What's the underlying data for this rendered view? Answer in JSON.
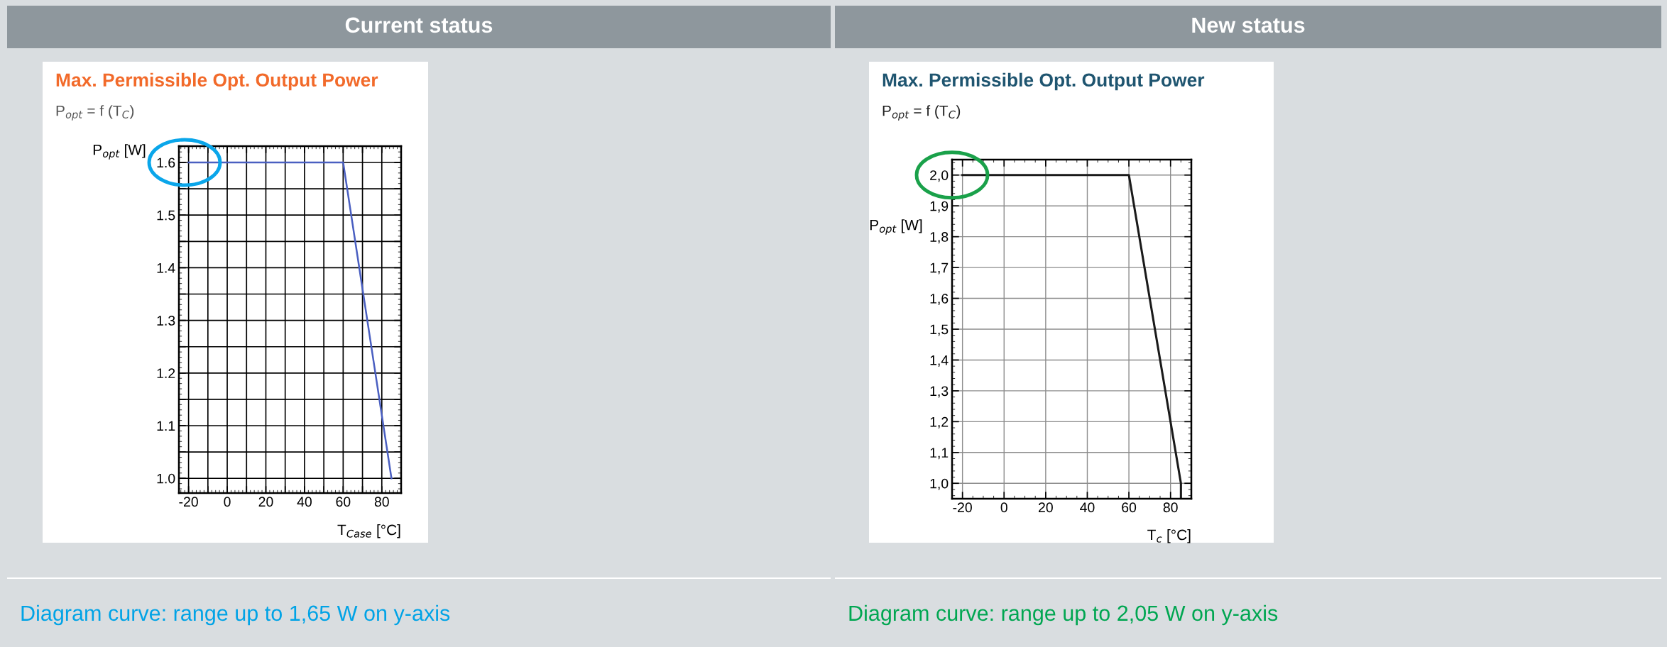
{
  "chart_data": [
    {
      "type": "line",
      "title": "Max. Permissible Opt. Output Power",
      "subtitle": "P$_{opt}$ = f (T$_{C}$)",
      "xlabel": "T$_{Case}$ [°C]",
      "ylabel": "P$_{opt}$ [W]",
      "annotations": [
        "Current status",
        "Diagram curve: range up to 1,65 W on y-axis"
      ],
      "x": [
        -20,
        60,
        85
      ],
      "series": [
        {
          "color": "#4a5fc1",
          "values": [
            1.6,
            1.6,
            1.0
          ]
        }
      ],
      "xlim": [
        -25,
        90
      ],
      "ylim": [
        0.972,
        1.631
      ],
      "xticks": [
        -20,
        {
          "value": -10,
          "label": null
        },
        0,
        {
          "value": 10,
          "label": null
        },
        20,
        {
          "value": 30,
          "label": null
        },
        40,
        {
          "value": 50,
          "label": null
        },
        60,
        {
          "value": 70,
          "label": null
        },
        80
      ],
      "yticks": [
        {
          "value": 1.0,
          "label": "1.0"
        },
        {
          "value": 1.05,
          "label": null
        },
        1.1,
        {
          "value": 1.15,
          "label": null
        },
        1.2,
        {
          "value": 1.25,
          "label": null
        },
        1.3,
        {
          "value": 1.35,
          "label": null
        },
        1.4,
        {
          "value": 1.45,
          "label": null
        },
        1.5,
        {
          "value": 1.55,
          "label": null
        },
        1.6
      ],
      "grid": true,
      "marker": "none",
      "line_style": "solid"
    },
    {
      "type": "line",
      "title": "Max. Permissible Opt. Output Power",
      "subtitle": "P$_{opt}$ = f (T$_{C}$)",
      "xlabel": "T$_{c}$ [°C]",
      "ylabel": "P$_{opt}$ [W]",
      "annotations": [
        "New status",
        "Diagram curve: range up to 2,05 W on y-axis"
      ],
      "x": [
        -20,
        60,
        85,
        85
      ],
      "series": [
        {
          "color": "#1a1a1a",
          "values": [
            2.0,
            2.0,
            1.0,
            0.95
          ]
        }
      ],
      "xlim": [
        -25,
        90
      ],
      "ylim": [
        0.95,
        2.05
      ],
      "xticks": [
        -20,
        0,
        20,
        40,
        60,
        80
      ],
      "yticks": [
        {
          "value": 1.0,
          "label": "1,0"
        },
        {
          "value": 1.1,
          "label": "1,1"
        },
        {
          "value": 1.2,
          "label": "1,2"
        },
        {
          "value": 1.3,
          "label": "1,3"
        },
        {
          "value": 1.4,
          "label": "1,4"
        },
        {
          "value": 1.5,
          "label": "1,5"
        },
        {
          "value": 1.6,
          "label": "1,6"
        },
        {
          "value": 1.7,
          "label": "1,7"
        },
        {
          "value": 1.8,
          "label": "1,8"
        },
        {
          "value": 1.9,
          "label": "1,9"
        },
        {
          "value": 2.0,
          "label": "2,0"
        }
      ],
      "grid": true,
      "marker": "none",
      "line_style": "solid"
    }
  ]
}
